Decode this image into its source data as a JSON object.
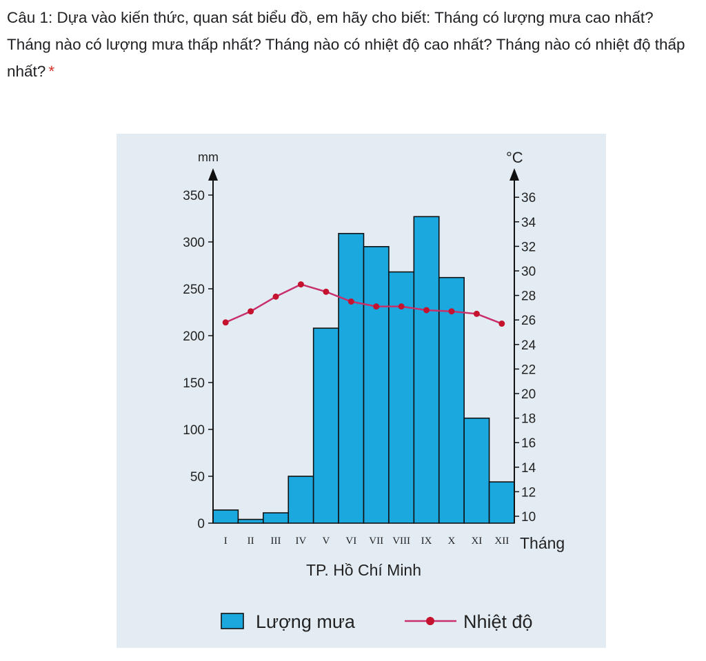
{
  "question": {
    "text": "Câu 1: Dựa vào kiến thức, quan sát biểu đồ, em hãy cho biết: Tháng có lượng mưa cao nhất? Tháng nào có lượng mưa thấp nhất? Tháng nào có nhiệt độ cao nhất? Tháng nào có nhiệt độ thấp nhất?",
    "required_mark": "*"
  },
  "colors": {
    "bar_fill": "#1ba8de",
    "bar_stroke": "#111111",
    "line": "#c9306a",
    "marker": "#c4122f",
    "figure_bg": "#e4ecf3"
  },
  "chart_data": {
    "type": "bar",
    "title": "TP. Hồ Chí Minh",
    "xlabel": "Tháng",
    "ylabel_left": "mm",
    "ylabel_right": "°C",
    "categories": [
      "I",
      "II",
      "III",
      "IV",
      "V",
      "VI",
      "VII",
      "VIII",
      "IX",
      "X",
      "XI",
      "XII"
    ],
    "y_left_ticks": [
      0,
      50,
      100,
      150,
      200,
      250,
      300,
      350
    ],
    "y_right_ticks": [
      10,
      12,
      14,
      16,
      18,
      20,
      22,
      24,
      26,
      28,
      30,
      32,
      34,
      36
    ],
    "ylim_left": [
      0,
      350
    ],
    "ylim_right": [
      10,
      37
    ],
    "series": [
      {
        "name": "Lượng mưa",
        "type": "bar",
        "axis": "left",
        "values": [
          14,
          4,
          11,
          50,
          208,
          309,
          295,
          268,
          327,
          262,
          112,
          44
        ]
      },
      {
        "name": "Nhiệt độ",
        "type": "line",
        "axis": "right",
        "values": [
          25.8,
          26.7,
          27.9,
          28.9,
          28.3,
          27.5,
          27.1,
          27.1,
          26.8,
          26.7,
          26.5,
          25.7
        ]
      }
    ],
    "legend": {
      "position": "bottom",
      "rain_label": "Lượng mưa",
      "temp_label": "Nhiệt độ"
    }
  }
}
